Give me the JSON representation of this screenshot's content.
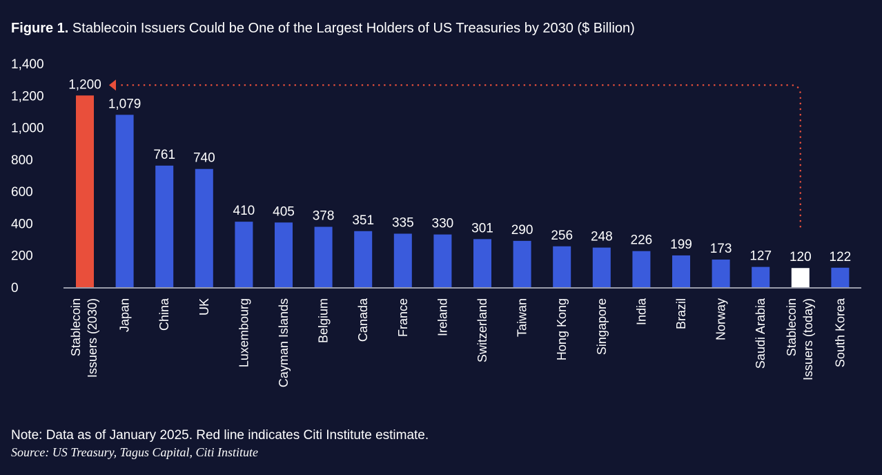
{
  "chart_data": {
    "type": "bar",
    "title_prefix": "Figure 1.",
    "title": "Stablecoin Issuers Could be One of the Largest Holders of US Treasuries by 2030 ($ Billion)",
    "categories": [
      "Stablecoin Issuers (2030)",
      "Japan",
      "China",
      "UK",
      "Luxembourg",
      "Cayman Islands",
      "Belgium",
      "Canada",
      "France",
      "Ireland",
      "Switzerland",
      "Taiwan",
      "Hong Kong",
      "Singapore",
      "India",
      "Brazil",
      "Norway",
      "Saudi Arabia",
      "Stablecoin Issuers (today)",
      "South Korea"
    ],
    "values": [
      1200,
      1079,
      761,
      740,
      410,
      405,
      378,
      351,
      335,
      330,
      301,
      290,
      256,
      248,
      226,
      199,
      173,
      127,
      120,
      122
    ],
    "value_labels": [
      "1,200",
      "1,079",
      "761",
      "740",
      "410",
      "405",
      "378",
      "351",
      "335",
      "330",
      "301",
      "290",
      "256",
      "248",
      "226",
      "199",
      "173",
      "127",
      "120",
      "122"
    ],
    "bar_colors": [
      "#e94f3b",
      "#3a5bdc",
      "#3a5bdc",
      "#3a5bdc",
      "#3a5bdc",
      "#3a5bdc",
      "#3a5bdc",
      "#3a5bdc",
      "#3a5bdc",
      "#3a5bdc",
      "#3a5bdc",
      "#3a5bdc",
      "#3a5bdc",
      "#3a5bdc",
      "#3a5bdc",
      "#3a5bdc",
      "#3a5bdc",
      "#3a5bdc",
      "#ffffff",
      "#3a5bdc"
    ],
    "ylim": [
      0,
      1400
    ],
    "yticks": [
      0,
      200,
      400,
      600,
      800,
      1000,
      1200,
      1400
    ],
    "ytick_labels": [
      "0",
      "200",
      "400",
      "600",
      "800",
      "1,000",
      "1,200",
      "1,400"
    ],
    "grid": false,
    "annotation": {
      "type": "dotted-arrow",
      "from": "Stablecoin Issuers (today)",
      "to": "Stablecoin Issuers (2030)",
      "color": "#e94f3b"
    }
  },
  "note": "Note: Data as of January 2025. Red line indicates Citi Institute estimate.",
  "source": "Source: US Treasury, Tagus Capital, Citi Institute"
}
